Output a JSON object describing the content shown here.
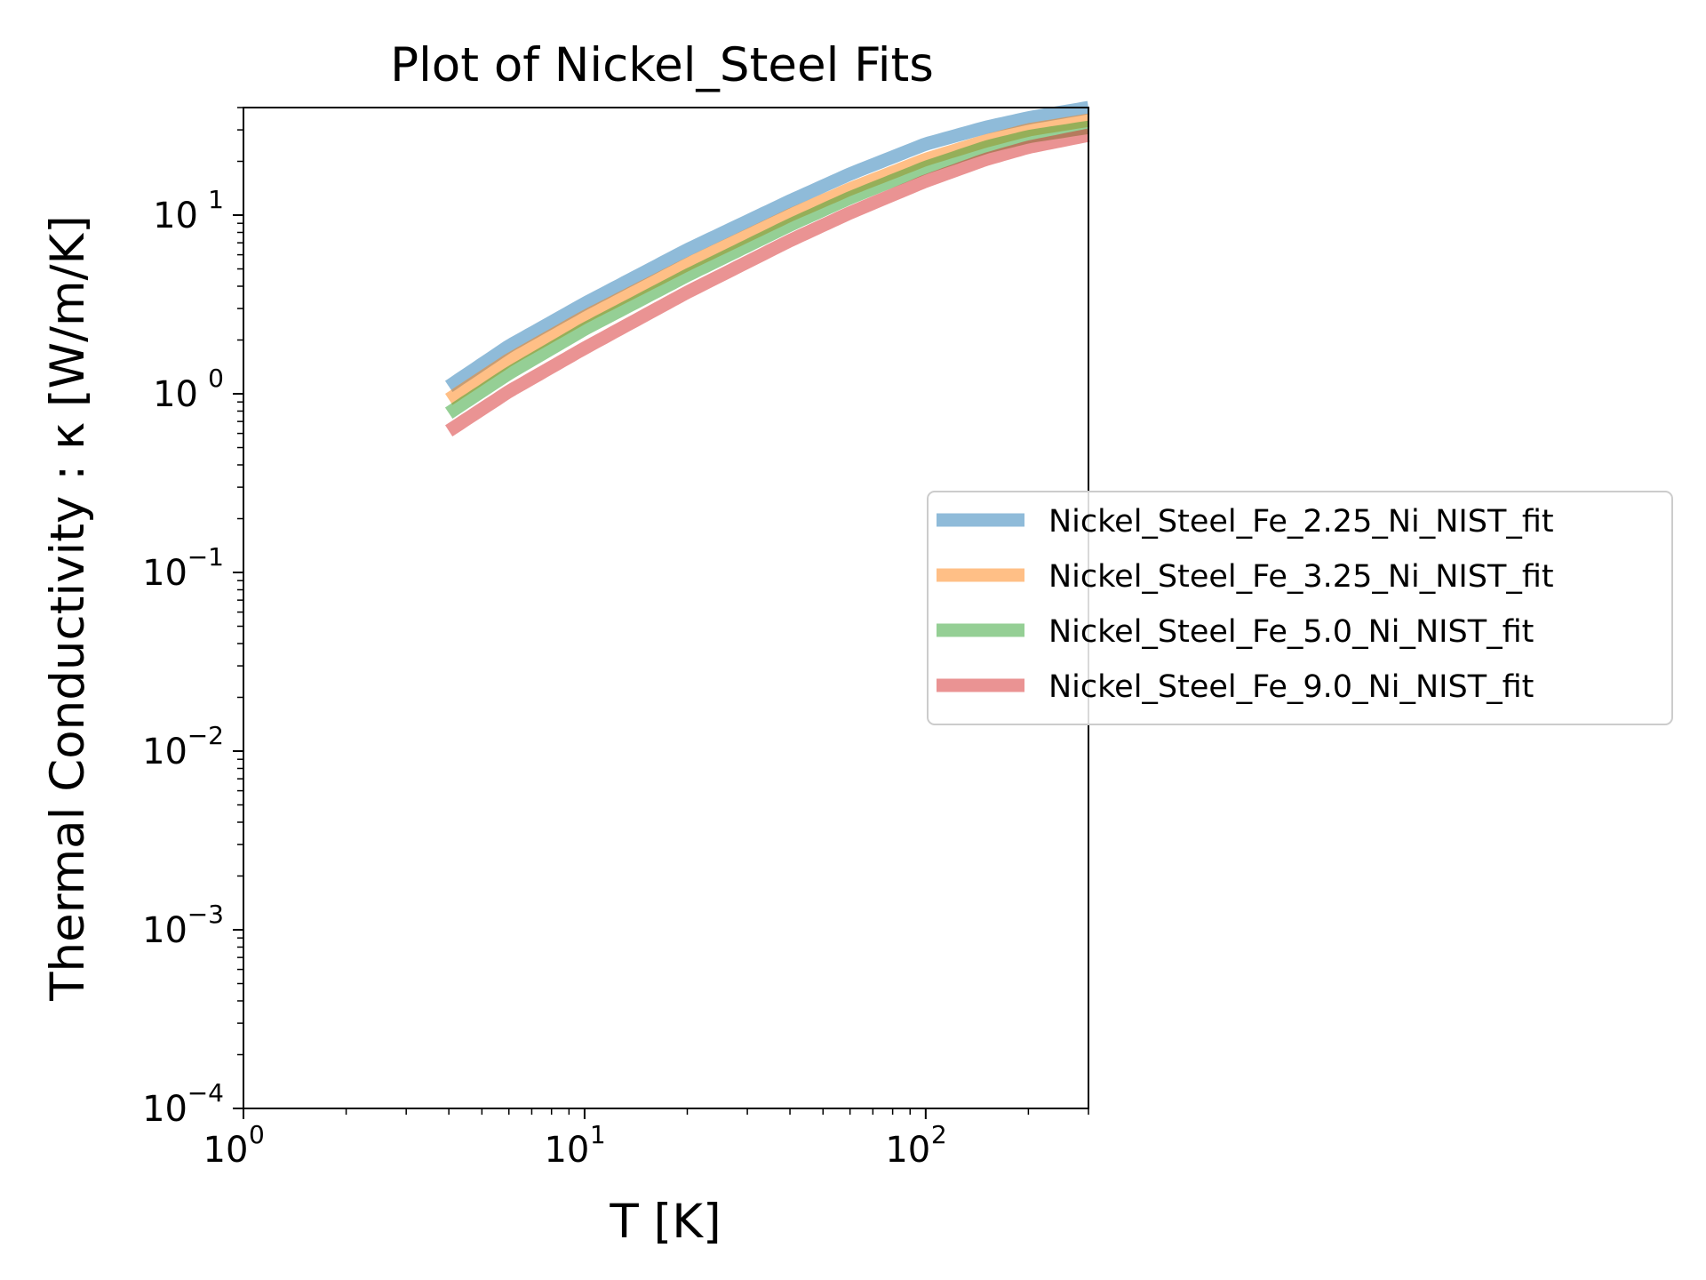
{
  "chart_data": {
    "type": "line",
    "title": "Plot of Nickel_Steel Fits",
    "xlabel": "T [K]",
    "ylabel": "Thermal Conductivity : κ [W/m/K]",
    "xscale": "log",
    "yscale": "log",
    "xlim": [
      1,
      300
    ],
    "ylim": [
      0.0001,
      40
    ],
    "x_ticks": [
      {
        "value": 1,
        "base": "10",
        "exp": "0"
      },
      {
        "value": 10,
        "base": "10",
        "exp": "1"
      },
      {
        "value": 100,
        "base": "10",
        "exp": "2"
      }
    ],
    "y_ticks": [
      {
        "value": 0.0001,
        "base": "10",
        "exp": "−4"
      },
      {
        "value": 0.001,
        "base": "10",
        "exp": "−3"
      },
      {
        "value": 0.01,
        "base": "10",
        "exp": "−2"
      },
      {
        "value": 0.1,
        "base": "10",
        "exp": "−1"
      },
      {
        "value": 1,
        "base": "10",
        "exp": "0"
      },
      {
        "value": 10,
        "base": "10",
        "exp": "1"
      }
    ],
    "grid": false,
    "legend_position": "right, outside axes",
    "series": [
      {
        "name": "Nickel_Steel_Fe_2.25_Ni_NIST_fit",
        "color": "#1f77b4",
        "x": [
          4,
          6,
          10,
          20,
          40,
          60,
          100,
          150,
          200,
          300
        ],
        "y": [
          1.1,
          1.85,
          3.2,
          6.4,
          12,
          17,
          25,
          31,
          35,
          40
        ]
      },
      {
        "name": "Nickel_Steel_Fe_3.25_Ni_NIST_fit",
        "color": "#ff7f0e",
        "x": [
          4,
          6,
          10,
          20,
          40,
          60,
          100,
          150,
          200,
          300
        ],
        "y": [
          0.93,
          1.55,
          2.7,
          5.3,
          10,
          14,
          20.5,
          26,
          30,
          34
        ]
      },
      {
        "name": "Nickel_Steel_Fe_5.0_Ni_NIST_fit",
        "color": "#2ca02c",
        "x": [
          4,
          6,
          10,
          20,
          40,
          60,
          100,
          150,
          200,
          300
        ],
        "y": [
          0.78,
          1.3,
          2.3,
          4.6,
          8.8,
          12.5,
          18.5,
          24,
          27.5,
          31
        ]
      },
      {
        "name": "Nickel_Steel_Fe_9.0_Ni_NIST_fit",
        "color": "#d62728",
        "x": [
          4,
          6,
          10,
          20,
          40,
          60,
          100,
          150,
          200,
          300
        ],
        "y": [
          0.62,
          1.03,
          1.8,
          3.7,
          7.2,
          10.3,
          15.5,
          20.5,
          24,
          28
        ]
      }
    ]
  }
}
